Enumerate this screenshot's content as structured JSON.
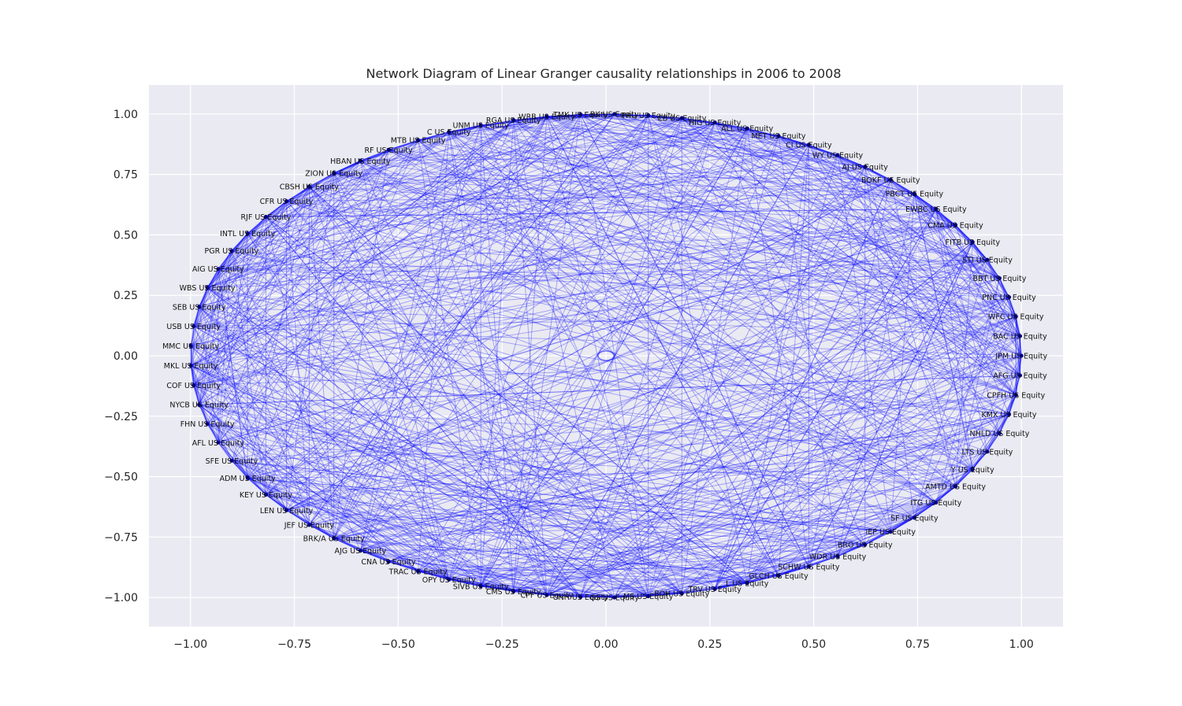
{
  "chart_data": {
    "type": "network",
    "title": "Network Diagram of Linear Granger causality relationships in 2006 to 2008",
    "xlabel": "",
    "ylabel": "",
    "xlim": [
      -1.1,
      1.1
    ],
    "ylim": [
      -1.12,
      1.12
    ],
    "x_ticks": [
      {
        "value": -1.0,
        "label": "−1.00"
      },
      {
        "value": -0.75,
        "label": "−0.75"
      },
      {
        "value": -0.5,
        "label": "−0.50"
      },
      {
        "value": -0.25,
        "label": "−0.25"
      },
      {
        "value": 0.0,
        "label": "0.00"
      },
      {
        "value": 0.25,
        "label": "0.25"
      },
      {
        "value": 0.5,
        "label": "0.50"
      },
      {
        "value": 0.75,
        "label": "0.75"
      },
      {
        "value": 1.0,
        "label": "1.00"
      }
    ],
    "y_ticks": [
      {
        "value": 1.0,
        "label": "1.00"
      },
      {
        "value": 0.75,
        "label": "0.75"
      },
      {
        "value": 0.5,
        "label": "0.50"
      },
      {
        "value": 0.25,
        "label": "0.25"
      },
      {
        "value": 0.0,
        "label": "0.00"
      },
      {
        "value": -0.25,
        "label": "−0.25"
      },
      {
        "value": -0.5,
        "label": "−0.50"
      },
      {
        "value": -0.75,
        "label": "−0.75"
      },
      {
        "value": -1.0,
        "label": "−1.00"
      }
    ],
    "grid": true,
    "layout": "circular",
    "nodes": [
      "JPM US Equity",
      "BAC US Equity",
      "WFC US Equity",
      "PNC US Equity",
      "BBT US Equity",
      "STI US Equity",
      "FITB US Equity",
      "CMA US Equity",
      "EWBC US Equity",
      "PBCT US Equity",
      "BOKF US Equity",
      "AJ US Equity",
      "WY US Equity",
      "CI US Equity",
      "MET US Equity",
      "ALL US Equity",
      "HIG US Equity",
      "CB US Equity",
      "PRU US Equity",
      "BK US Equity",
      "TMK US Equity",
      "WRB US Equity",
      "RGA US Equity",
      "UNM US Equity",
      "C US Equity",
      "MTB US Equity",
      "RF US Equity",
      "HBAN US Equity",
      "ZION US Equity",
      "CBSH US Equity",
      "CFR US Equity",
      "RJF US Equity",
      "INTL US Equity",
      "PGR US Equity",
      "AIG US Equity",
      "WBS US Equity",
      "SEB US Equity",
      "USB US Equity",
      "MMC US Equity",
      "MKL US Equity",
      "COF US Equity",
      "NYCB US Equity",
      "FHN US Equity",
      "AFL US Equity",
      "SFE US Equity",
      "ADM US Equity",
      "KEY US Equity",
      "LEN US Equity",
      "JEF US Equity",
      "BRK/A US Equity",
      "AJG US Equity",
      "CNA US Equity",
      "TRAC US Equity",
      "OPY US Equity",
      "SIVB US Equity",
      "CMS US Equity",
      "CPF US Equity",
      "UNH US Equity",
      "GS US Equity",
      "MS US Equity",
      "BOH US Equity",
      "TRV US Equity",
      "L US Equity",
      "GLCH US Equity",
      "SCHW US Equity",
      "WDR US Equity",
      "BRO US Equity",
      "IEP US Equity",
      "SF US Equity",
      "ITG US Equity",
      "AMTD US Equity",
      "Y US Equity",
      "LTS US Equity",
      "NHLD US Equity",
      "KMX US Equity",
      "CPFH US Equity",
      "AFG US Equity"
    ],
    "edge_color": "#0000ff",
    "edge_alpha": 0.3,
    "node_color": "#000080",
    "self_loop_note": ""
  }
}
